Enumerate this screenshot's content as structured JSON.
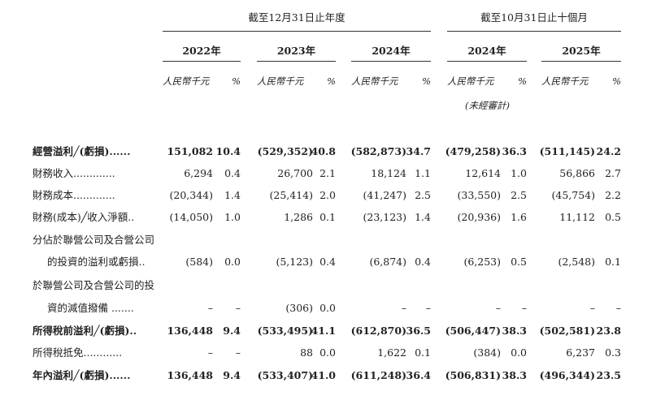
{
  "groups": [
    {
      "title": "截至12月31日止年度",
      "years": [
        "2022年",
        "2023年",
        "2024年"
      ]
    },
    {
      "title": "截至10月31日止十個月",
      "years": [
        "2024年",
        "2025年"
      ]
    }
  ],
  "units": {
    "amount": "人民幣千元",
    "percent": "%"
  },
  "unaudited": "(未經審計)",
  "rows": [
    {
      "label": [
        "經營溢利╱(虧損)......"
      ],
      "bold": true,
      "values": [
        "151,082",
        "10.4",
        "(529,352)",
        "40.8",
        "(582,873)",
        "34.7",
        "(479,258)",
        "36.3",
        "(511,145)",
        "24.2"
      ]
    },
    {
      "label": [
        "財務收入............."
      ],
      "bold": false,
      "values": [
        "6,294",
        "0.4",
        "26,700",
        "2.1",
        "18,124",
        "1.1",
        "12,614",
        "1.0",
        "56,866",
        "2.7"
      ]
    },
    {
      "label": [
        "財務成本............."
      ],
      "bold": false,
      "values": [
        "(20,344)",
        "1.4",
        "(25,414)",
        "2.0",
        "(41,247)",
        "2.5",
        "(33,550)",
        "2.5",
        "(45,754)",
        "2.2"
      ]
    },
    {
      "label": [
        "財務(成本)╱收入淨額.."
      ],
      "bold": false,
      "values": [
        "(14,050)",
        "1.0",
        "1,286",
        "0.1",
        "(23,123)",
        "1.4",
        "(20,936)",
        "1.6",
        "11,112",
        "0.5"
      ]
    },
    {
      "label": [
        "分佔於聯營公司及合營公司",
        "的投資的溢利或虧損.."
      ],
      "bold": false,
      "values": [
        "(584)",
        "0.0",
        "(5,123)",
        "0.4",
        "(6,874)",
        "0.4",
        "(6,253)",
        "0.5",
        "(2,548)",
        "0.1"
      ]
    },
    {
      "label": [
        "於聯營公司及合營公司的投",
        "資的減值撥備 ......."
      ],
      "bold": false,
      "values": [
        "–",
        "–",
        "(306)",
        "0.0",
        "–",
        "–",
        "–",
        "–",
        "–",
        "–"
      ]
    },
    {
      "label": [
        "所得稅前溢利╱(虧損).."
      ],
      "bold": true,
      "values": [
        "136,448",
        "9.4",
        "(533,495)",
        "41.1",
        "(612,870)",
        "36.5",
        "(506,447)",
        "38.3",
        "(502,581)",
        "23.8"
      ]
    },
    {
      "label": [
        "所得稅抵免............"
      ],
      "bold": false,
      "values": [
        "–",
        "–",
        "88",
        "0.0",
        "1,622",
        "0.1",
        "(384)",
        "0.0",
        "6,237",
        "0.3"
      ]
    },
    {
      "label": [
        "年內溢利╱(虧損)......"
      ],
      "bold": true,
      "values": [
        "136,448",
        "9.4",
        "(533,407)",
        "41.0",
        "(611,248)",
        "36.4",
        "(506,831)",
        "38.3",
        "(496,344)",
        "23.5"
      ]
    }
  ]
}
